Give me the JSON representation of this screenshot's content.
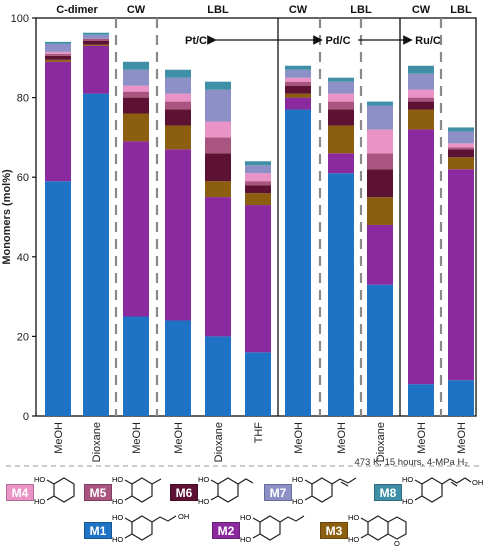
{
  "chart_data": {
    "type": "bar",
    "stacked": true,
    "ylabel": "Monomers (mol%)",
    "ylim": [
      0,
      100
    ],
    "yticks": [
      0,
      20,
      40,
      60,
      80,
      100
    ],
    "categories": [
      "MeOH",
      "Dioxane",
      "MeOH",
      "MeOH",
      "Dioxane",
      "THF",
      "MeOH",
      "MeOH",
      "Dioxane",
      "MeOH",
      "MeOH"
    ],
    "group_labels": [
      {
        "text": "C-dimer",
        "bars": [
          0,
          1
        ]
      },
      {
        "text": "CW",
        "bars": [
          2,
          2
        ]
      },
      {
        "text": "LBL",
        "bars": [
          3,
          5
        ]
      },
      {
        "text": "CW",
        "bars": [
          6,
          6
        ]
      },
      {
        "text": "LBL",
        "bars": [
          7,
          8
        ]
      },
      {
        "text": "CW",
        "bars": [
          9,
          9
        ]
      },
      {
        "text": "LBL",
        "bars": [
          10,
          10
        ]
      }
    ],
    "catalysts": [
      "Pt/C",
      "Pd/C",
      "Ru/C"
    ],
    "series": [
      {
        "name": "M1",
        "color": "#1f73c4",
        "values": [
          59,
          81,
          25,
          24,
          20,
          16,
          77,
          61,
          33,
          8,
          9
        ]
      },
      {
        "name": "M2",
        "color": "#8b2a9e",
        "values": [
          30,
          12,
          44,
          43,
          35,
          37,
          3,
          5,
          15,
          64,
          53
        ]
      },
      {
        "name": "M3",
        "color": "#8c5e10",
        "values": [
          0.5,
          0.3,
          7,
          6,
          4,
          3,
          1,
          7,
          7,
          5,
          3
        ]
      },
      {
        "name": "M6",
        "color": "#5e1233",
        "values": [
          1,
          1,
          4,
          4,
          7,
          2,
          2,
          4,
          7,
          2,
          2
        ]
      },
      {
        "name": "M5",
        "color": "#a9557f",
        "values": [
          0.5,
          0.5,
          1.5,
          2,
          4,
          1,
          1,
          2,
          4,
          1,
          0.5
        ]
      },
      {
        "name": "M4",
        "color": "#e993c6",
        "values": [
          0.5,
          0,
          1.5,
          2,
          4,
          2,
          1,
          2,
          6,
          2,
          1
        ]
      },
      {
        "name": "M7",
        "color": "#8d90c6",
        "values": [
          2,
          1,
          4,
          4,
          8,
          2,
          2,
          3,
          6,
          4,
          3
        ]
      },
      {
        "name": "M8",
        "color": "#3f8fa6",
        "values": [
          0.5,
          0.5,
          2,
          2,
          2,
          1,
          1,
          1,
          1,
          2,
          1
        ]
      }
    ],
    "conditions": "473 K, 15 hours, 4-MPa H₂"
  },
  "legend": {
    "row1": [
      {
        "code": "M4",
        "color": "#e993c6"
      },
      {
        "code": "M5",
        "color": "#a9557f"
      },
      {
        "code": "M6",
        "color": "#5e1233"
      },
      {
        "code": "M7",
        "color": "#8d90c6"
      },
      {
        "code": "M8",
        "color": "#3f8fa6"
      }
    ],
    "row2": [
      {
        "code": "M1",
        "color": "#1f73c4"
      },
      {
        "code": "M2",
        "color": "#8b2a9e"
      },
      {
        "code": "M3",
        "color": "#8c5e10"
      }
    ]
  },
  "molecule": {
    "ho": "HO",
    "oh": "OH",
    "o": "O"
  }
}
